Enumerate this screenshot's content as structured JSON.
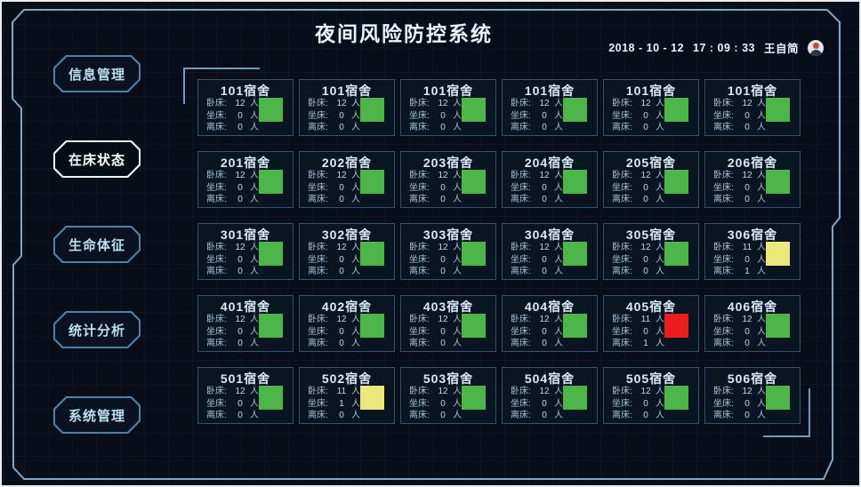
{
  "header": {
    "title": "夜间风险防控系统",
    "date": "2018 - 10 - 12",
    "time": "17 : 09 : 33",
    "user": "王自简"
  },
  "sidebar": {
    "items": [
      {
        "label": "信息管理",
        "active": false
      },
      {
        "label": "在床状态",
        "active": true
      },
      {
        "label": "生命体征",
        "active": false
      },
      {
        "label": "统计分析",
        "active": false
      },
      {
        "label": "系统管理",
        "active": false
      }
    ]
  },
  "card_labels": {
    "lying": "卧床:",
    "sitting": "坐床:",
    "leaving": "离床:",
    "unit": "人"
  },
  "status_colors": {
    "normal": "#4cb648",
    "warning": "#ece77b",
    "alert": "#ec1c1c"
  },
  "rooms": [
    {
      "name": "101宿舍",
      "lying": 12,
      "sitting": 0,
      "leaving": 0,
      "status": "normal"
    },
    {
      "name": "101宿舍",
      "lying": 12,
      "sitting": 0,
      "leaving": 0,
      "status": "normal"
    },
    {
      "name": "101宿舍",
      "lying": 12,
      "sitting": 0,
      "leaving": 0,
      "status": "normal"
    },
    {
      "name": "101宿舍",
      "lying": 12,
      "sitting": 0,
      "leaving": 0,
      "status": "normal"
    },
    {
      "name": "101宿舍",
      "lying": 12,
      "sitting": 0,
      "leaving": 0,
      "status": "normal"
    },
    {
      "name": "101宿舍",
      "lying": 12,
      "sitting": 0,
      "leaving": 0,
      "status": "normal"
    },
    {
      "name": "201宿舍",
      "lying": 12,
      "sitting": 0,
      "leaving": 0,
      "status": "normal"
    },
    {
      "name": "202宿舍",
      "lying": 12,
      "sitting": 0,
      "leaving": 0,
      "status": "normal"
    },
    {
      "name": "203宿舍",
      "lying": 12,
      "sitting": 0,
      "leaving": 0,
      "status": "normal"
    },
    {
      "name": "204宿舍",
      "lying": 12,
      "sitting": 0,
      "leaving": 0,
      "status": "normal"
    },
    {
      "name": "205宿舍",
      "lying": 12,
      "sitting": 0,
      "leaving": 0,
      "status": "normal"
    },
    {
      "name": "206宿舍",
      "lying": 12,
      "sitting": 0,
      "leaving": 0,
      "status": "normal"
    },
    {
      "name": "301宿舍",
      "lying": 12,
      "sitting": 0,
      "leaving": 0,
      "status": "normal"
    },
    {
      "name": "302宿舍",
      "lying": 12,
      "sitting": 0,
      "leaving": 0,
      "status": "normal"
    },
    {
      "name": "303宿舍",
      "lying": 12,
      "sitting": 0,
      "leaving": 0,
      "status": "normal"
    },
    {
      "name": "304宿舍",
      "lying": 12,
      "sitting": 0,
      "leaving": 0,
      "status": "normal"
    },
    {
      "name": "305宿舍",
      "lying": 12,
      "sitting": 0,
      "leaving": 0,
      "status": "normal"
    },
    {
      "name": "306宿舍",
      "lying": 11,
      "sitting": 0,
      "leaving": 1,
      "status": "warning"
    },
    {
      "name": "401宿舍",
      "lying": 12,
      "sitting": 0,
      "leaving": 0,
      "status": "normal"
    },
    {
      "name": "402宿舍",
      "lying": 12,
      "sitting": 0,
      "leaving": 0,
      "status": "normal"
    },
    {
      "name": "403宿舍",
      "lying": 12,
      "sitting": 0,
      "leaving": 0,
      "status": "normal"
    },
    {
      "name": "404宿舍",
      "lying": 12,
      "sitting": 0,
      "leaving": 0,
      "status": "normal"
    },
    {
      "name": "405宿舍",
      "lying": 11,
      "sitting": 0,
      "leaving": 1,
      "status": "alert"
    },
    {
      "name": "406宿舍",
      "lying": 12,
      "sitting": 0,
      "leaving": 0,
      "status": "normal"
    },
    {
      "name": "501宿舍",
      "lying": 12,
      "sitting": 0,
      "leaving": 0,
      "status": "normal"
    },
    {
      "name": "502宿舍",
      "lying": 11,
      "sitting": 1,
      "leaving": 0,
      "status": "warning"
    },
    {
      "name": "503宿舍",
      "lying": 12,
      "sitting": 0,
      "leaving": 0,
      "status": "normal"
    },
    {
      "name": "504宿舍",
      "lying": 12,
      "sitting": 0,
      "leaving": 0,
      "status": "normal"
    },
    {
      "name": "505宿舍",
      "lying": 12,
      "sitting": 0,
      "leaving": 0,
      "status": "normal"
    },
    {
      "name": "506宿舍",
      "lying": 12,
      "sitting": 0,
      "leaving": 0,
      "status": "normal"
    }
  ]
}
